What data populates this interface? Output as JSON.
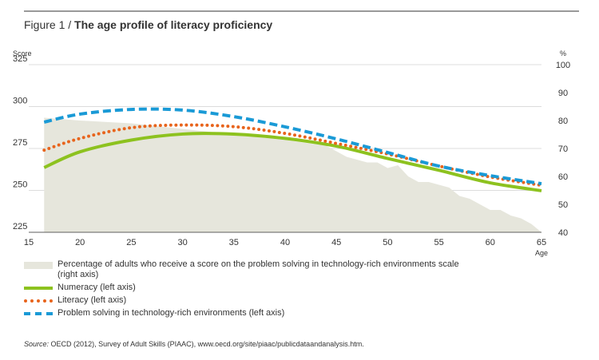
{
  "chart_data": {
    "type": "line",
    "figure_label": "Figure 1 /",
    "title": "The age profile of literacy proficiency",
    "y_label": "Score",
    "y2_label": "%",
    "x_label": "Age",
    "x": [
      16.5,
      20,
      25,
      30,
      35,
      40,
      45,
      50,
      55,
      60,
      65
    ],
    "xlim": [
      15,
      65
    ],
    "xticks": [
      15,
      20,
      25,
      30,
      35,
      40,
      45,
      50,
      55,
      60,
      65
    ],
    "ylim": [
      225,
      325
    ],
    "yticks": [
      225,
      250,
      275,
      300,
      325
    ],
    "y2lim": [
      40,
      100
    ],
    "y2ticks": [
      40,
      50,
      60,
      70,
      80,
      90,
      100
    ],
    "grid": true,
    "series": [
      {
        "name": "Percentage of adults who receive a score on the problem solving in technology-rich environments scale (right axis)",
        "type": "area",
        "axis": "y2",
        "color": "#e6e6dc",
        "x": [
          16.5,
          20,
          25,
          30,
          35,
          40,
          44,
          46,
          48,
          49,
          50,
          51,
          52,
          53,
          54,
          55,
          56,
          57,
          58,
          59,
          60,
          61,
          62,
          63,
          64,
          65
        ],
        "values": [
          81,
          80,
          79,
          77,
          75,
          73,
          71,
          67,
          65,
          65,
          63,
          64,
          60,
          58,
          58,
          57,
          56,
          53,
          52,
          50,
          48,
          48,
          46,
          45,
          43,
          40
        ]
      },
      {
        "name": "Numeracy (left axis)",
        "color": "#8dc21f",
        "style": "solid",
        "values": [
          263.6,
          273,
          280,
          283.6,
          283.6,
          281,
          276.4,
          269,
          262,
          254.5,
          249.8
        ]
      },
      {
        "name": "Literacy (left axis)",
        "color": "#e8641c",
        "style": "dotted",
        "values": [
          274,
          281,
          287.4,
          289,
          288,
          284,
          278,
          271.7,
          264.5,
          258,
          253
        ]
      },
      {
        "name": "Problem solving in technology-rich environments (left axis)",
        "color": "#1a9ad6",
        "style": "dashed",
        "values": [
          290.7,
          295.5,
          298.3,
          297.9,
          294,
          287.9,
          280.7,
          272.6,
          264.5,
          258.8,
          254
        ]
      }
    ],
    "source_label": "Source:",
    "source": "OECD (2012), Survey of Adult Skills (PIAAC), www.oecd.org/site/piaac/publicdataandanalysis.htm."
  }
}
